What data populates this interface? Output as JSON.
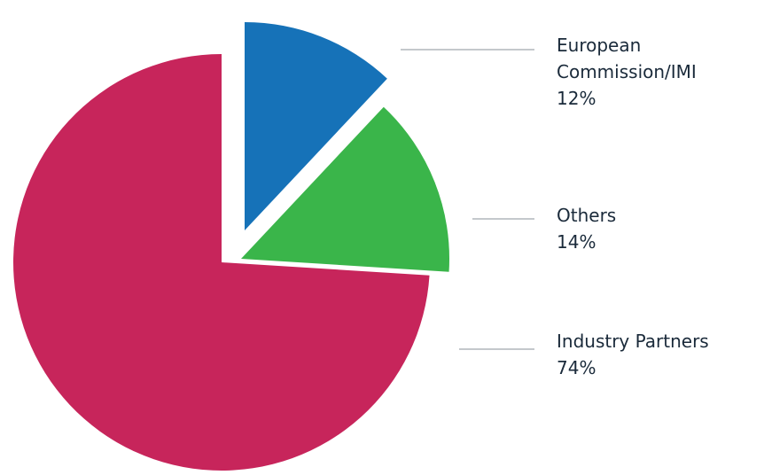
{
  "chart_data": {
    "type": "pie",
    "title": "",
    "slices": [
      {
        "label_lines": [
          "European",
          "Commission/IMI"
        ],
        "value_label": "12%",
        "value": 12,
        "color": "#1672b8"
      },
      {
        "label_lines": [
          "Others"
        ],
        "value_label": "14%",
        "value": 14,
        "color": "#3ab54a"
      },
      {
        "label_lines": [
          "Industry Partners"
        ],
        "value_label": "74%",
        "value": 74,
        "color": "#c7255b"
      }
    ],
    "legend": "right, with leader lines",
    "exploded": true
  }
}
